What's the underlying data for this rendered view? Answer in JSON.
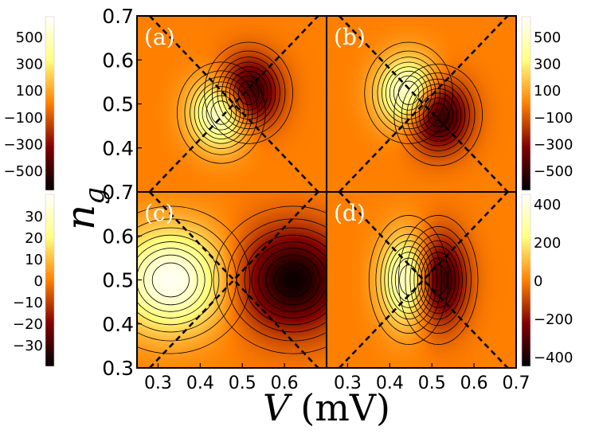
{
  "chart_data": {
    "type": "heatmap",
    "xlabel_var": "V",
    "xlabel_unit": "(mV)",
    "ylabel": "n",
    "ylabel_sub": "g",
    "xlim": [
      0.25,
      0.7
    ],
    "ylim": [
      0.3,
      0.7
    ],
    "x_ticks": [
      0.3,
      0.4,
      0.5,
      0.6,
      0.7
    ],
    "x_tick_labels": [
      "0.3",
      "0.4",
      "0.5",
      "0.6",
      "0.7"
    ],
    "y_ticks": [
      0.3,
      0.4,
      0.5,
      0.6,
      0.7
    ],
    "y_tick_labels": [
      "0.3",
      "0.4",
      "0.5",
      "0.6",
      "0.7"
    ],
    "colormap": "afmhot",
    "diamond": {
      "center_v": 0.48,
      "center_ng": 0.5,
      "half_width_v": 0.2,
      "half_height_ng": 0.2
    },
    "panels": [
      {
        "label": "(a)",
        "position": "top-left",
        "range": [
          -650,
          650
        ],
        "colorbar_side": "left",
        "colorbar_ticks": [
          500,
          300,
          100,
          -100,
          -300,
          -500
        ],
        "colorbar_labels": [
          "500",
          "300",
          "100",
          "−100",
          "−300",
          "−500"
        ],
        "blobs": [
          {
            "v": 0.45,
            "ng": 0.48,
            "amp": 1.0,
            "sv": 0.05,
            "sn": 0.055
          },
          {
            "v": 0.515,
            "ng": 0.525,
            "amp": -1.0,
            "sv": 0.05,
            "sn": 0.055
          }
        ]
      },
      {
        "label": "(b)",
        "position": "top-right",
        "range": [
          -650,
          650
        ],
        "colorbar_side": "right",
        "colorbar_ticks": [
          500,
          300,
          100,
          -100,
          -300,
          -500
        ],
        "colorbar_labels": [
          "500",
          "300",
          "100",
          "−100",
          "−300",
          "−500"
        ],
        "blobs": [
          {
            "v": 0.445,
            "ng": 0.525,
            "amp": 1.0,
            "sv": 0.05,
            "sn": 0.055
          },
          {
            "v": 0.515,
            "ng": 0.475,
            "amp": -1.0,
            "sv": 0.05,
            "sn": 0.055
          }
        ]
      },
      {
        "label": "(c)",
        "position": "bottom-left",
        "range": [
          -40,
          40
        ],
        "colorbar_side": "left",
        "colorbar_ticks": [
          30,
          20,
          10,
          0,
          -10,
          -20,
          -30
        ],
        "colorbar_labels": [
          "30",
          "20",
          "10",
          "0",
          "−10",
          "−20",
          "−30"
        ],
        "blobs": [
          {
            "v": 0.33,
            "ng": 0.5,
            "amp": 1.0,
            "sv": 0.09,
            "sn": 0.08
          },
          {
            "v": 0.62,
            "ng": 0.5,
            "amp": -1.0,
            "sv": 0.09,
            "sn": 0.08
          }
        ]
      },
      {
        "label": "(d)",
        "position": "bottom-right",
        "range": [
          -450,
          450
        ],
        "colorbar_side": "right",
        "colorbar_ticks": [
          400,
          200,
          0,
          -200,
          -400
        ],
        "colorbar_labels": [
          "400",
          "200",
          "0",
          "−200",
          "−400"
        ],
        "blobs": [
          {
            "v": 0.445,
            "ng": 0.5,
            "amp": 1.0,
            "sv": 0.045,
            "sn": 0.07
          },
          {
            "v": 0.515,
            "ng": 0.5,
            "amp": -1.0,
            "sv": 0.045,
            "sn": 0.07
          }
        ]
      }
    ]
  }
}
